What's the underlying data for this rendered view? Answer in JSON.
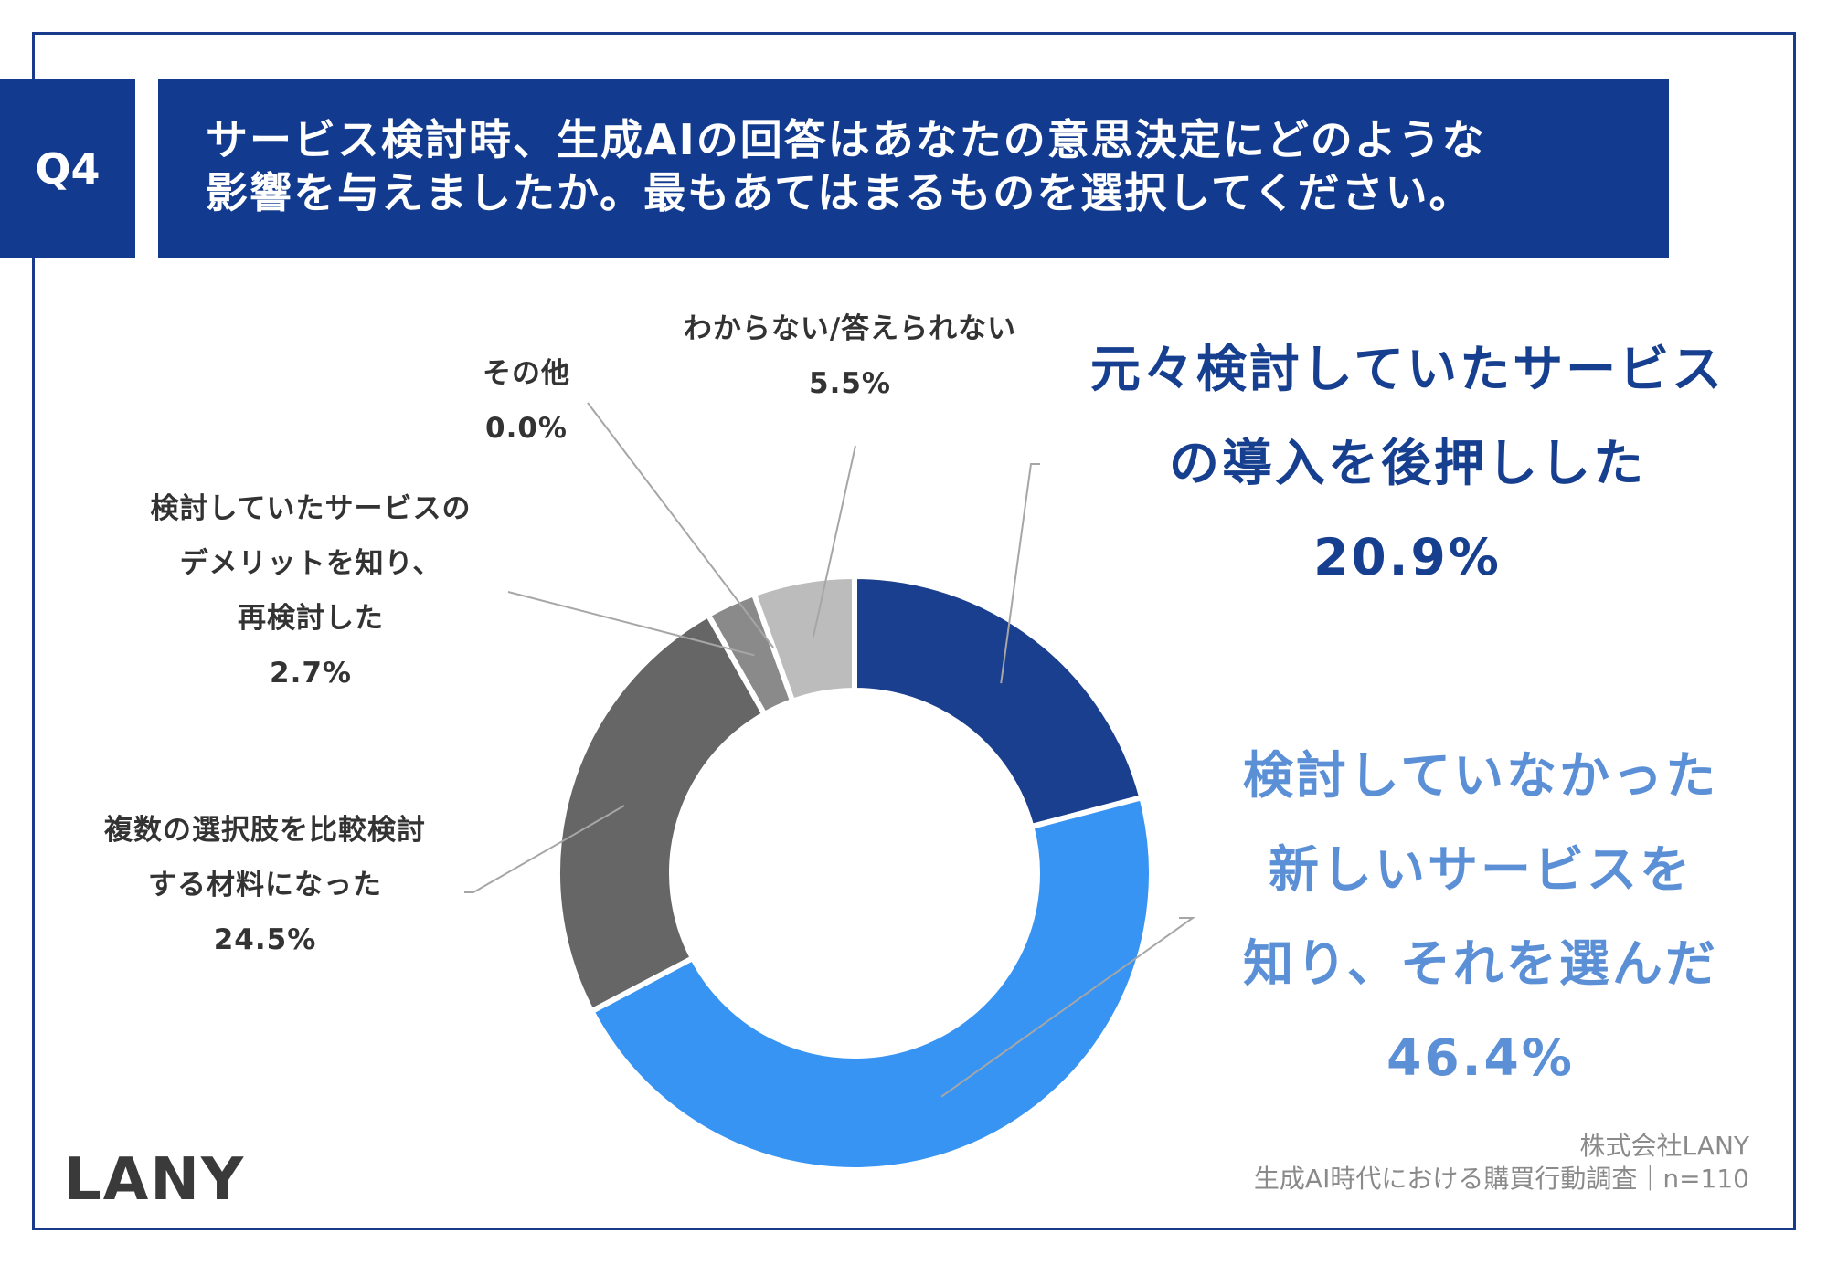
{
  "question": {
    "number": "Q4",
    "title_line1": "サービス検討時、生成AIの回答はあなたの意思決定にどのような",
    "title_line2": "影響を与えましたか。最もあてはまるものを選択してください。"
  },
  "chart_data": {
    "type": "pie",
    "donut": true,
    "start_angle_deg": 0,
    "direction": "clockwise",
    "slices": [
      {
        "label": "元々検討していたサービスの導入を後押しした",
        "value": 20.9,
        "value_label": "20.9%",
        "color": "#1b3f8f"
      },
      {
        "label": "検討していなかった新しいサービスを知り、それを選んだ",
        "value": 46.4,
        "value_label": "46.4%",
        "color": "#3794f3"
      },
      {
        "label": "複数の選択肢を比較検討する材料になった",
        "value": 24.5,
        "value_label": "24.5%",
        "color": "#666666"
      },
      {
        "label": "検討していたサービスのデメリットを知り、再検討した",
        "value": 2.7,
        "value_label": "2.7%",
        "color": "#8a8a8a"
      },
      {
        "label": "その他",
        "value": 0.0,
        "value_label": "0.0%",
        "color": "#9a9a9a"
      },
      {
        "label": "わからない/答えられない",
        "value": 5.5,
        "value_label": "5.5%",
        "color": "#bcbcbc"
      }
    ]
  },
  "labels": {
    "slice0": {
      "line1": "元々検討していたサービス",
      "line2": "の導入を後押しした",
      "pct": "20.9%"
    },
    "slice1": {
      "line1": "検討していなかった",
      "line2": "新しいサービスを",
      "line3": "知り、それを選んだ",
      "pct": "46.4%"
    },
    "slice2": {
      "line1": "複数の選択肢を比較検討",
      "line2": "する材料になった",
      "pct": "24.5%"
    },
    "slice3": {
      "line1": "検討していたサービスの",
      "line2": "デメリットを知り、",
      "line3": "再検討した",
      "pct": "2.7%"
    },
    "slice4": {
      "line1": "その他",
      "pct": "0.0%"
    },
    "slice5": {
      "line1": "わからない/答えられない",
      "pct": "5.5%"
    }
  },
  "source": {
    "company": "株式会社LANY",
    "survey": "生成AI時代における購買行動調査｜n=110"
  },
  "logo": {
    "text": "LANY"
  },
  "colors": {
    "frame": "#1a3b8c",
    "header_bg": "#123a8f",
    "label_dark": "#173f8f",
    "label_light": "#5b8fd6"
  }
}
